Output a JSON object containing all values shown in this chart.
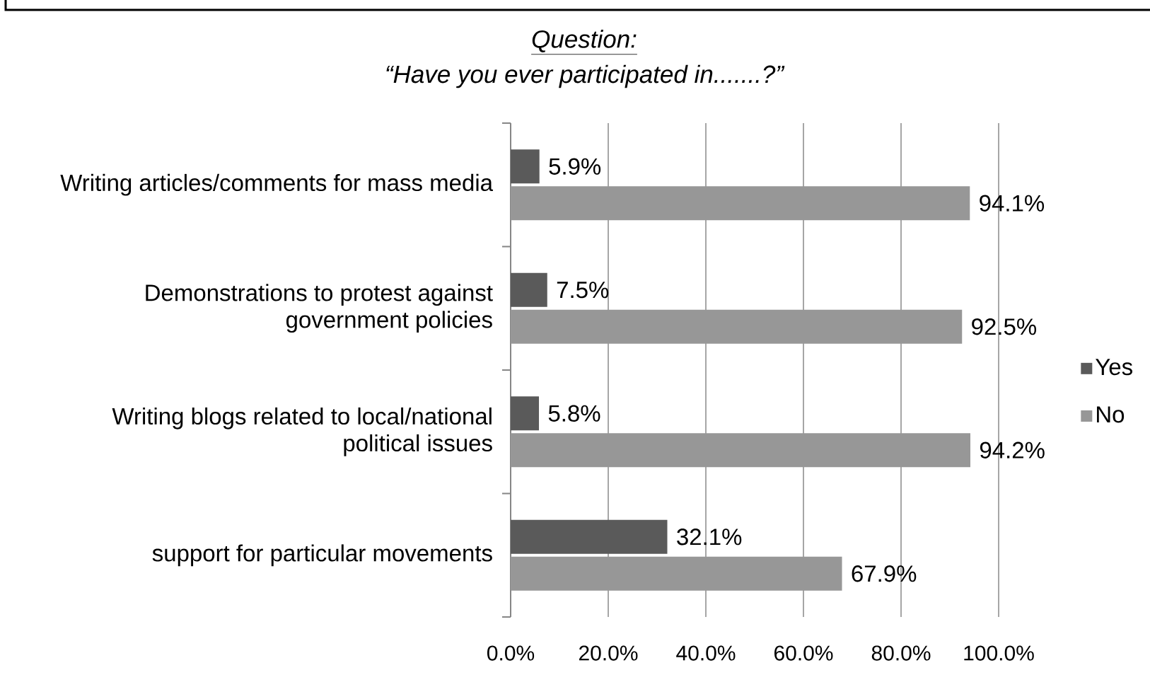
{
  "chart_data": {
    "type": "bar",
    "orientation": "horizontal",
    "title": "Question:",
    "subtitle": "“Have you ever participated in.......?”",
    "categories": [
      "Writing articles/comments for mass media",
      "Demonstrations to protest against government policies",
      "Writing blogs related to local/national political issues",
      "support for particular movements"
    ],
    "series": [
      {
        "name": "Yes",
        "color": "#5a5a5a",
        "values": [
          5.9,
          7.5,
          5.8,
          32.1
        ],
        "value_labels": [
          "5.9%",
          "7.5%",
          "5.8%",
          "32.1%"
        ]
      },
      {
        "name": "No",
        "color": "#979797",
        "values": [
          94.1,
          92.5,
          94.2,
          67.9
        ],
        "value_labels": [
          "94.1%",
          "92.5%",
          "94.2%",
          "67.9%"
        ]
      }
    ],
    "xlim": [
      0,
      100
    ],
    "xticks": [
      {
        "value": 0,
        "label": "0.0%"
      },
      {
        "value": 20,
        "label": "20.0%"
      },
      {
        "value": 40,
        "label": "40.0%"
      },
      {
        "value": 60,
        "label": "60.0%"
      },
      {
        "value": 80,
        "label": "80.0%"
      },
      {
        "value": 100,
        "label": "100.0%"
      }
    ],
    "grid": "x",
    "legend": "right"
  }
}
